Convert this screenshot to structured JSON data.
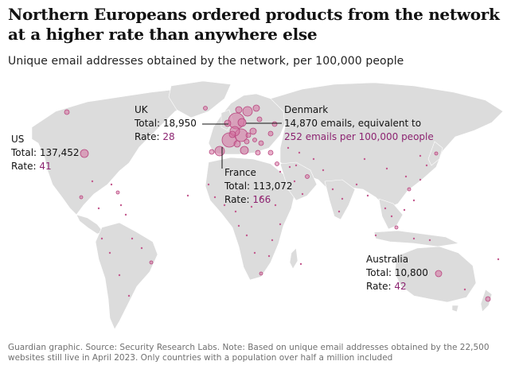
{
  "headline": "Northern Europeans ordered products from the network at a higher rate than anywhere else",
  "subtitle": "Unique email addresses obtained by the network, per 100,000 people",
  "colors": {
    "land": "#dcdcdc",
    "bubble_fill": "#d4709f",
    "bubble_stroke": "#b8467f",
    "highlight_text": "#8c2471"
  },
  "annotations": {
    "uk": {
      "name": "UK",
      "total": "Total: 18,950",
      "rate_label": "Rate: ",
      "rate": "28"
    },
    "us": {
      "name": "US",
      "total": "Total: 137,452",
      "rate_label": "Rate: ",
      "rate": "41"
    },
    "france": {
      "name": "France",
      "total": "Total: 113,072",
      "rate_label": "Rate: ",
      "rate": "166"
    },
    "denmark": {
      "name": "Denmark",
      "line1": "14,870 emails, equivalent to",
      "line2": "252 emails per 100,000 people"
    },
    "australia": {
      "name": "Australia",
      "total": "Total: 10,800",
      "rate_label": "Rate: ",
      "rate": "42"
    }
  },
  "footer": "Guardian graphic. Source: Security Research Labs. Note: Based on unique email addresses obtained by the 22,500 websites still live in April 2023. Only countries with a population over half a million included"
}
